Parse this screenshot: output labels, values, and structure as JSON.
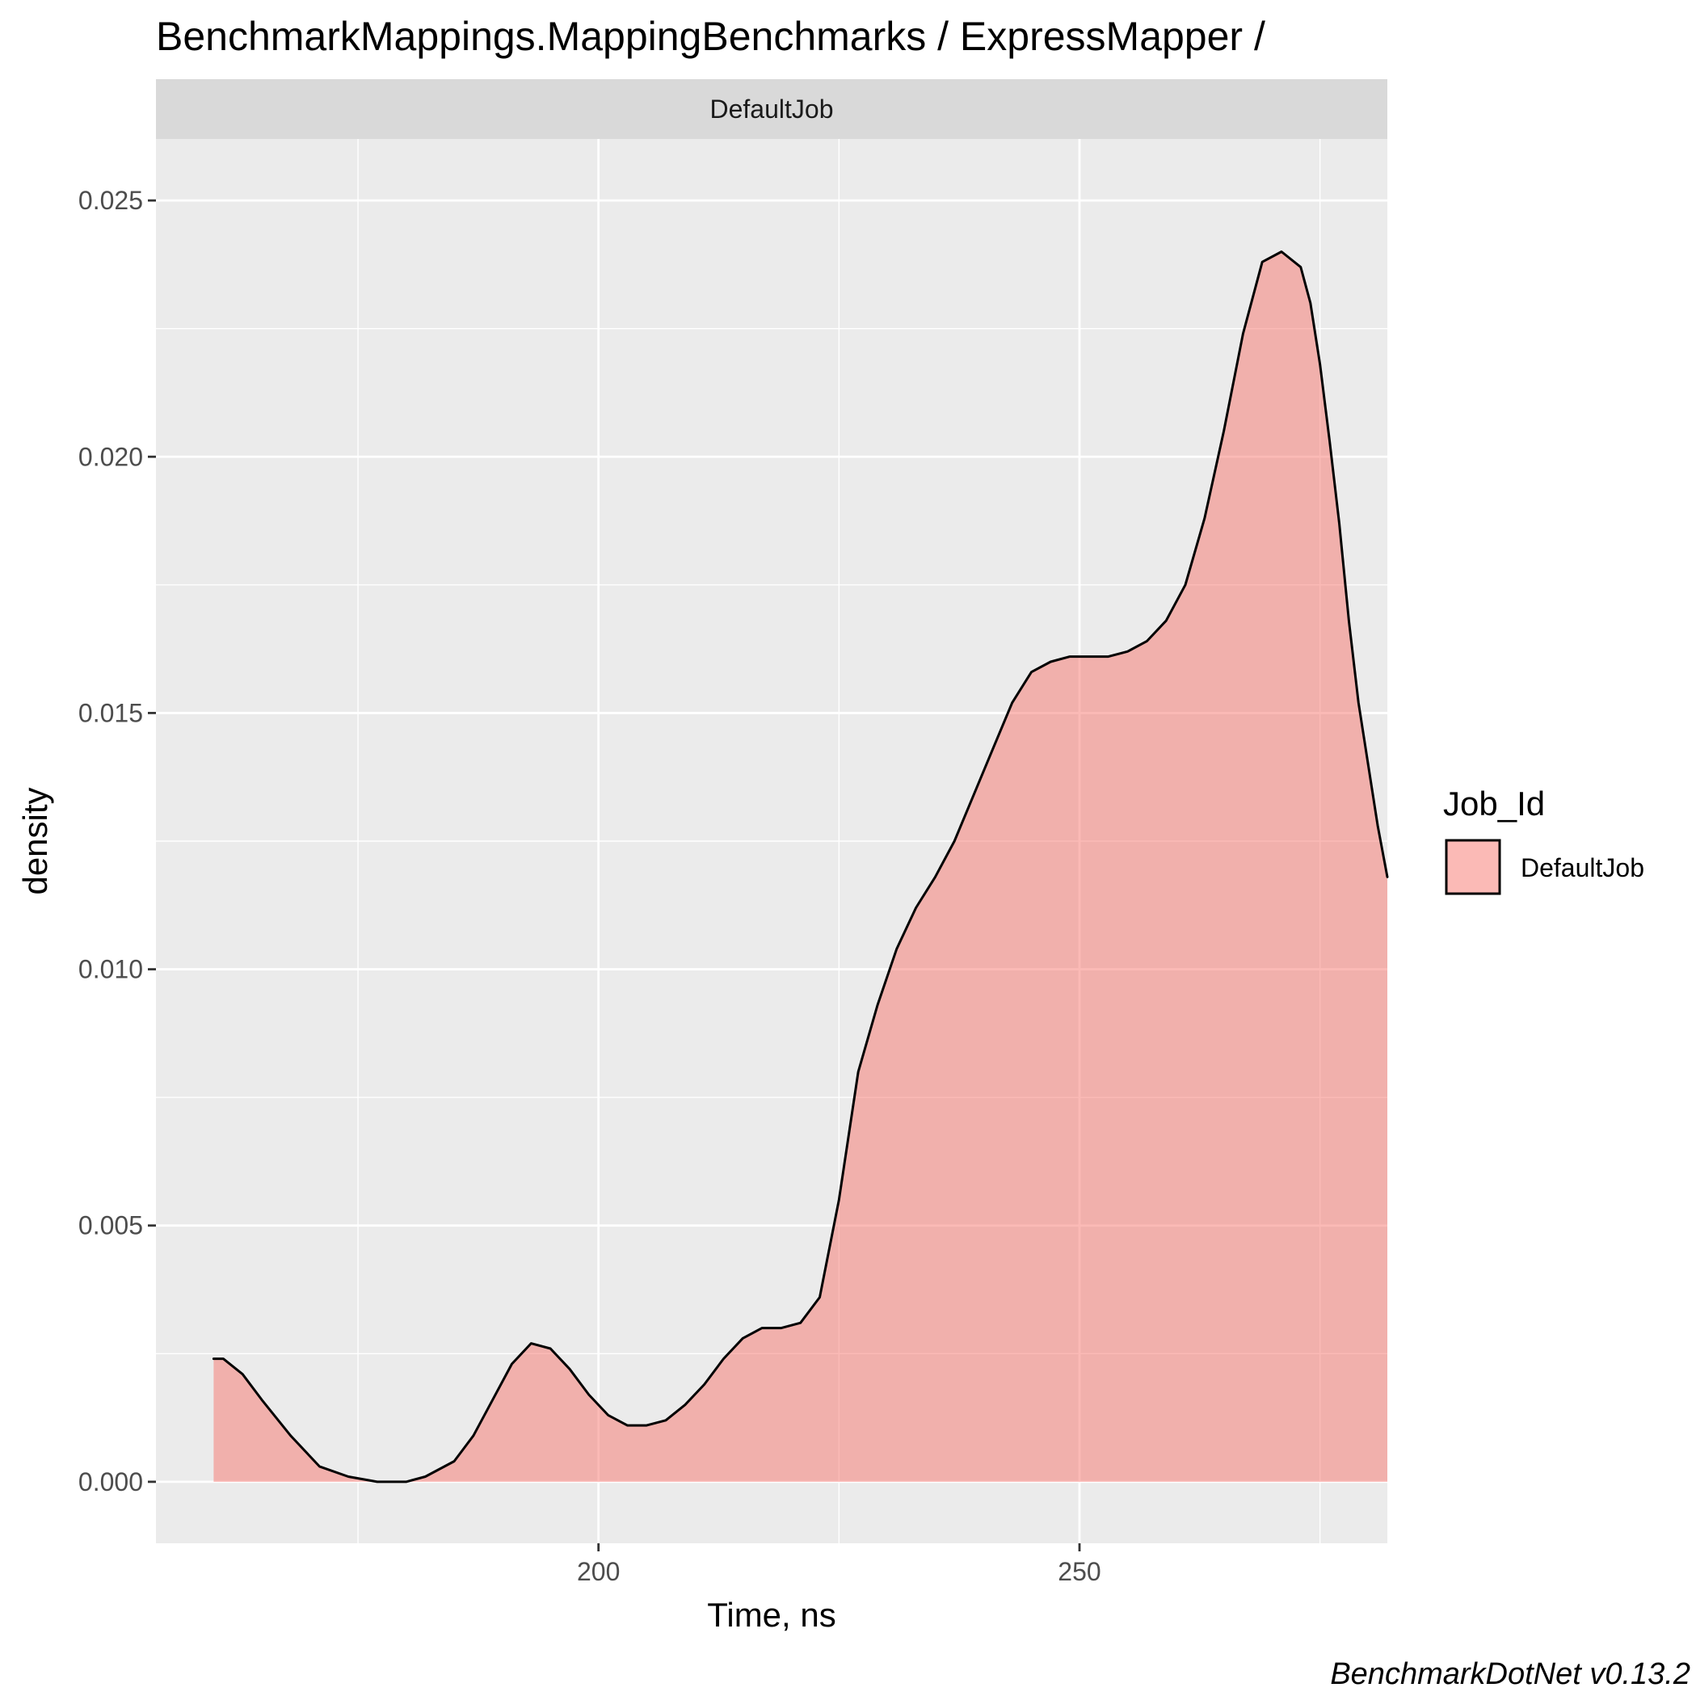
{
  "chart_data": {
    "type": "area",
    "title": "BenchmarkMappings.MappingBenchmarks / ExpressMapper /",
    "facet_label": "DefaultJob",
    "xlabel": "Time, ns",
    "ylabel": "density",
    "caption": "BenchmarkDotNet v0.13.2",
    "xlim": [
      154,
      282
    ],
    "ylim": [
      -0.0012,
      0.0262
    ],
    "x_ticks": [
      200,
      250
    ],
    "x_minor_ticks": [
      175,
      225,
      275
    ],
    "y_ticks": [
      0.0,
      0.005,
      0.01,
      0.015,
      0.02,
      0.025
    ],
    "y_tick_labels": [
      "0.000",
      "0.005",
      "0.010",
      "0.015",
      "0.020",
      "0.025"
    ],
    "y_minor_ticks": [
      0.0025,
      0.0075,
      0.0125,
      0.0175,
      0.0225
    ],
    "grid": true,
    "legend": {
      "title": "Job_Id",
      "position": "right",
      "entries": [
        "DefaultJob"
      ]
    },
    "series": [
      {
        "name": "DefaultJob",
        "fill": "#f8766d",
        "x": [
          160,
          161,
          163,
          165,
          168,
          171,
          174,
          177,
          180,
          182,
          185,
          187,
          189,
          191,
          193,
          195,
          197,
          199,
          201,
          203,
          205,
          207,
          209,
          211,
          213,
          215,
          217,
          219,
          221,
          223,
          225,
          227,
          229,
          231,
          233,
          235,
          237,
          239,
          241,
          243,
          245,
          247,
          249,
          251,
          253,
          255,
          257,
          259,
          261,
          263,
          265,
          267,
          269,
          271,
          273,
          274,
          275,
          276,
          277,
          278,
          279,
          280,
          281,
          282
        ],
        "y": [
          0.0024,
          0.0024,
          0.0021,
          0.0016,
          0.0009,
          0.0003,
          0.0001,
          0.0,
          0.0,
          0.0001,
          0.0004,
          0.0009,
          0.0016,
          0.0023,
          0.0027,
          0.0026,
          0.0022,
          0.0017,
          0.0013,
          0.0011,
          0.0011,
          0.0012,
          0.0015,
          0.0019,
          0.0024,
          0.0028,
          0.003,
          0.003,
          0.0031,
          0.0036,
          0.0055,
          0.008,
          0.0093,
          0.0104,
          0.0112,
          0.0118,
          0.0125,
          0.0134,
          0.0143,
          0.0152,
          0.0158,
          0.016,
          0.0161,
          0.0161,
          0.0161,
          0.0162,
          0.0164,
          0.0168,
          0.0175,
          0.0188,
          0.0205,
          0.0224,
          0.0238,
          0.024,
          0.0237,
          0.023,
          0.0218,
          0.0203,
          0.0187,
          0.0168,
          0.0152,
          0.014,
          0.0128,
          0.0118
        ]
      }
    ]
  }
}
